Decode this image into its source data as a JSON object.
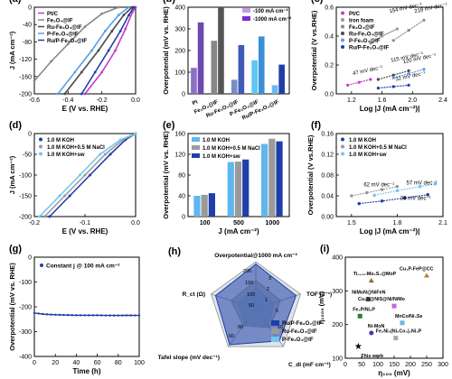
{
  "figure": {
    "panels": [
      "(a)",
      "(b)",
      "(c)",
      "(d)",
      "(e)",
      "(f)",
      "(g)",
      "(h)",
      "(i)"
    ]
  },
  "colors": {
    "ptc": "#c03ec8",
    "fe3o4": "#888888",
    "ru_fe3o4": "#4a4a4a",
    "p_fe3o4": "#5a9ee8",
    "rup_fe3o4": "#1f3fa8",
    "iron_foam": "#999999",
    "bar_100": "#c79be8",
    "bar_1000": "#7b2fc8",
    "koh": "#1f3fa8",
    "koh_nacl": "#9a9a9a",
    "koh_sw": "#6fc7ef",
    "stability": "#1f3fa8"
  },
  "chart_data": [
    {
      "panel": "(a)",
      "type": "line",
      "xlabel": "E (V vs. RHE)",
      "ylabel": "J (mA cm⁻²)",
      "xlim": [
        -0.6,
        0.0
      ],
      "ylim": [
        -200,
        0
      ],
      "xticks": [
        "-0.6",
        "-0.4",
        "-0.2",
        "0.0"
      ],
      "yticks": [
        "-200",
        "-160",
        "-120",
        "-80",
        "-40",
        "0"
      ],
      "legend": [
        "Pt/C",
        "Fe₃O₄@IF",
        "Ru-Fe₃O₄@IF",
        "P-Fe₃O₄@IF",
        "Ru/P-Fe₃O₄@IF"
      ],
      "series": [
        {
          "name": "Pt/C",
          "x": [
            -0.3,
            -0.2,
            -0.12,
            -0.06,
            -0.02,
            0.0
          ],
          "y": [
            -200,
            -150,
            -100,
            -50,
            -12,
            0
          ]
        },
        {
          "name": "Fe₃O₄@IF",
          "x": [
            -0.6,
            -0.5,
            -0.4,
            -0.3,
            -0.2,
            -0.1
          ],
          "y": [
            -170,
            -125,
            -85,
            -45,
            -15,
            0
          ]
        },
        {
          "name": "Ru-Fe₃O₄@IF",
          "x": [
            -0.42,
            -0.32,
            -0.22,
            -0.14,
            -0.07,
            -0.02
          ],
          "y": [
            -200,
            -150,
            -100,
            -55,
            -18,
            0
          ]
        },
        {
          "name": "P-Fe₃O₄@IF",
          "x": [
            -0.46,
            -0.36,
            -0.26,
            -0.18,
            -0.1,
            -0.04
          ],
          "y": [
            -200,
            -150,
            -100,
            -55,
            -18,
            0
          ]
        },
        {
          "name": "Ru/P-Fe₃O₄@IF",
          "x": [
            -0.32,
            -0.24,
            -0.16,
            -0.09,
            -0.04,
            -0.01
          ],
          "y": [
            -200,
            -150,
            -100,
            -55,
            -18,
            0
          ]
        }
      ]
    },
    {
      "panel": "(b)",
      "type": "bar",
      "ylabel": "Overpotential (mV vs. RHE)",
      "ylim": [
        0,
        400
      ],
      "yticks": [
        "0",
        "100",
        "200",
        "300",
        "400"
      ],
      "categories": [
        "Pt",
        "Fe₃O₄@IF",
        "Ru-Fe₃O₄@IF",
        "P-Fe₃O₄@IF",
        "Ru/P-Fe₃O₄@IF"
      ],
      "series": [
        {
          "name": "-100 mA cm⁻²",
          "values": [
            120,
            245,
            65,
            155,
            40
          ]
        },
        {
          "name": "-1000 mA cm⁻²",
          "values": [
            330,
            400,
            225,
            265,
            135
          ]
        }
      ]
    },
    {
      "panel": "(c)",
      "type": "line",
      "xlabel": "Log |J (mA cm⁻²)|",
      "ylabel": "Overpotential (V vs.RHE)",
      "xlim": [
        1.0,
        2.4
      ],
      "ylim": [
        0.0,
        0.6
      ],
      "xticks": [
        "1.2",
        "1.6",
        "2.0",
        "2.4"
      ],
      "yticks": [
        "0.0",
        "0.2",
        "0.4",
        "0.6"
      ],
      "legend": [
        "Pt/C",
        "Iron foam",
        "Fe₃O₄@IF",
        "Ru-Fe₃O₄@IF",
        "P-Fe₃O₄@IF",
        "Ru/P-Fe₃O₄@IF"
      ],
      "annotations": [
        "47 mV dec⁻¹",
        "154 mV dec⁻¹",
        "218 mV dec⁻¹",
        "115 mV dec⁻¹",
        "120 mV dec⁻¹",
        "32 mV dec⁻¹"
      ],
      "series": [
        {
          "name": "Pt/C",
          "x": [
            1.15,
            1.3,
            1.45
          ],
          "y": [
            0.06,
            0.08,
            0.1
          ]
        },
        {
          "name": "Iron foam",
          "x": [
            1.45,
            1.6,
            1.8
          ],
          "y": [
            0.35,
            0.4,
            0.45
          ]
        },
        {
          "name": "Fe₃O₄@IF",
          "x": [
            1.75,
            1.95,
            2.15
          ],
          "y": [
            0.37,
            0.44,
            0.51
          ]
        },
        {
          "name": "Ru-Fe₃O₄@IF",
          "x": [
            1.55,
            1.75,
            1.95
          ],
          "y": [
            0.1,
            0.13,
            0.16
          ]
        },
        {
          "name": "P-Fe₃O₄@IF",
          "x": [
            1.75,
            1.95,
            2.15
          ],
          "y": [
            0.11,
            0.14,
            0.17
          ]
        },
        {
          "name": "Ru/P-Fe₃O₄@IF",
          "x": [
            1.55,
            1.75,
            1.95
          ],
          "y": [
            0.04,
            0.05,
            0.06
          ]
        }
      ]
    },
    {
      "panel": "(d)",
      "type": "line",
      "xlabel": "E (V vs. RHE)",
      "ylabel": "J (mA cm⁻²)",
      "xlim": [
        -0.2,
        0.0
      ],
      "ylim": [
        -200,
        0
      ],
      "xticks": [
        "-0.2",
        "-0.1",
        "0.0"
      ],
      "yticks": [
        "-200",
        "-150",
        "-100",
        "-50",
        "0"
      ],
      "legend": [
        "1.0 M KOH",
        "1.0 M KOH+0.5 M NaCl",
        "1.0 M KOH+sw"
      ],
      "series": [
        {
          "name": "1.0 M KOH",
          "x": [
            -0.17,
            -0.13,
            -0.09,
            -0.05,
            -0.02,
            0.0
          ],
          "y": [
            -200,
            -150,
            -100,
            -50,
            -15,
            0
          ]
        },
        {
          "name": "1.0 M KOH+0.5 M NaCl",
          "x": [
            -0.18,
            -0.14,
            -0.1,
            -0.06,
            -0.025,
            0.0
          ],
          "y": [
            -200,
            -150,
            -100,
            -50,
            -15,
            0
          ]
        },
        {
          "name": "1.0 M KOH+sw",
          "x": [
            -0.19,
            -0.15,
            -0.11,
            -0.07,
            -0.03,
            0.0
          ],
          "y": [
            -200,
            -150,
            -100,
            -50,
            -15,
            0
          ]
        }
      ]
    },
    {
      "panel": "(e)",
      "type": "bar",
      "xlabel": "J (mA cm⁻²)",
      "ylabel": "Overpotential (mV vs. RHE)",
      "ylim": [
        0,
        160
      ],
      "yticks": [
        "0",
        "40",
        "80",
        "120",
        "160"
      ],
      "categories": [
        "100",
        "500",
        "1000"
      ],
      "series": [
        {
          "name": "1.0 M KOH",
          "values": [
            40,
            105,
            140
          ]
        },
        {
          "name": "1.0 M KOH+0.5 M NaCl",
          "values": [
            42,
            106,
            150
          ]
        },
        {
          "name": "1.0 M KOH+sw",
          "values": [
            45,
            110,
            145
          ]
        }
      ]
    },
    {
      "panel": "(f)",
      "type": "line",
      "xlabel": "Log |J (mA cm⁻²)|",
      "ylabel": "Overpotential (V vs.RHE)",
      "xlim": [
        1.4,
        2.1
      ],
      "ylim": [
        0.0,
        0.16
      ],
      "xticks": [
        "1.5",
        "1.8",
        "2.1"
      ],
      "yticks": [
        "0.00",
        "0.04",
        "0.08",
        "0.12",
        "0.16"
      ],
      "legend": [
        "1.0 M KOH",
        "1.0 M KOH+0.5 M NaCl",
        "1.0 M KOH+sw"
      ],
      "annotations": [
        "62 mV dec⁻¹",
        "57 mV dec⁻¹",
        "38 mV dec⁻¹"
      ],
      "series": [
        {
          "name": "1.0 M KOH",
          "x": [
            1.55,
            1.7,
            1.85,
            2.0
          ],
          "y": [
            0.025,
            0.03,
            0.036,
            0.042
          ]
        },
        {
          "name": "1.0 M KOH+0.5 M NaCl",
          "x": [
            1.5,
            1.6,
            1.7,
            1.8
          ],
          "y": [
            0.04,
            0.046,
            0.052,
            0.058
          ]
        },
        {
          "name": "1.0 M KOH+sw",
          "x": [
            1.65,
            1.8,
            1.95,
            2.05
          ],
          "y": [
            0.041,
            0.05,
            0.058,
            0.063
          ]
        }
      ]
    },
    {
      "panel": "(g)",
      "type": "line",
      "xlabel": "Time (h)",
      "ylabel": "Overpotential (mV vs. RHE)",
      "xlim": [
        0,
        100
      ],
      "ylim": [
        -400,
        0
      ],
      "xticks": [
        "0",
        "20",
        "40",
        "60",
        "80",
        "100"
      ],
      "yticks": [
        "-400",
        "-300",
        "-200",
        "-100",
        "0"
      ],
      "legend": [
        "Constant j @ 100 mA cm⁻²"
      ],
      "series": [
        {
          "name": "Constant j @ 100 mA cm⁻²",
          "x": [
            0,
            10,
            20,
            30,
            40,
            50,
            60,
            70,
            80,
            90,
            100
          ],
          "y": [
            -225,
            -230,
            -232,
            -233,
            -234,
            -234,
            -234,
            -235,
            -235,
            -234,
            -235
          ]
        }
      ]
    },
    {
      "panel": "(h)",
      "type": "radar",
      "axes": [
        "Overpotential@1000 mA cm⁻²",
        "TOF (s⁻¹)",
        "C_dl (mF cm⁻²)",
        "Tafel slope (mV dec⁻¹)",
        "R_ct (Ω)"
      ],
      "scale_labels": [
        "200",
        "150",
        "100",
        "50",
        "3",
        "2",
        "1",
        "5",
        "60",
        "80",
        "50",
        "5"
      ],
      "legend": [
        "Ru/P-Fe₃O₄@IF",
        "Ru-Fe₃O₄@IF",
        "P-Fe₃O₄@IF"
      ],
      "series": [
        {
          "name": "Ru/P-Fe₃O₄@IF",
          "values": [
            0.95,
            0.9,
            0.85,
            0.95,
            0.9
          ]
        },
        {
          "name": "Ru-Fe₃O₄@IF",
          "values": [
            0.6,
            0.55,
            0.5,
            0.45,
            0.55
          ]
        },
        {
          "name": "P-Fe₃O₄@IF",
          "values": [
            0.45,
            0.4,
            0.45,
            0.4,
            0.4
          ]
        }
      ]
    },
    {
      "panel": "(i)",
      "type": "scatter",
      "xlabel": "η₁₀₀ (mV)",
      "ylabel": "η₁₀₀₀ (mV)",
      "xlim": [
        0,
        300
      ],
      "ylim": [
        100,
        400
      ],
      "xticks": [
        "0",
        "50",
        "100",
        "150",
        "200",
        "250",
        "300"
      ],
      "yticks": [
        "100",
        "200",
        "300",
        "400"
      ],
      "points": [
        {
          "label": "This work",
          "x": 40,
          "y": 135
        },
        {
          "label": "Ti₀.₀₅-Mo₂S₃@MoP",
          "x": 80,
          "y": 330
        },
        {
          "label": "Cu₃P-FeP@CC",
          "x": 250,
          "y": 345
        },
        {
          "label": "NiMoN@NiFeN",
          "x": 70,
          "y": 275
        },
        {
          "label": "Cu₃S@NiS@Ni/NiMo",
          "x": 150,
          "y": 255
        },
        {
          "label": "Fe₂P/Ni₂P",
          "x": 45,
          "y": 225
        },
        {
          "label": "MnCo/Ni₃Se",
          "x": 175,
          "y": 205
        },
        {
          "label": "Ni-MoN",
          "x": 80,
          "y": 175
        },
        {
          "label": "Fe₂Ni₂(Ni₂Co₃)₂Ni₂P",
          "x": 155,
          "y": 160
        }
      ]
    }
  ]
}
